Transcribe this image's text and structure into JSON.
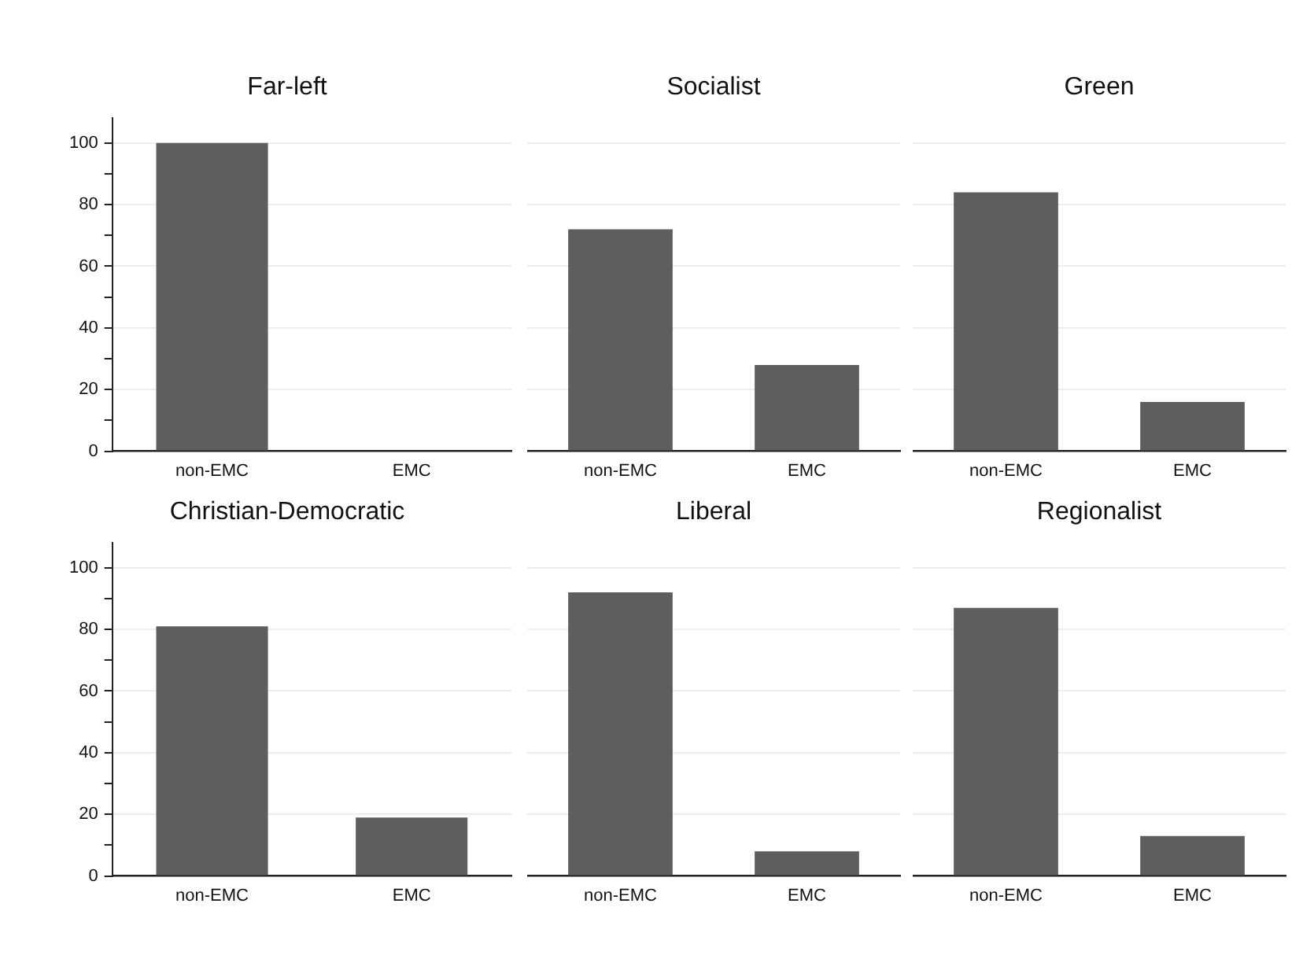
{
  "chart_data": [
    {
      "type": "bar",
      "title": "Far-left",
      "categories": [
        "non-EMC",
        "EMC"
      ],
      "values": [
        100,
        0
      ],
      "color": "#5e5e5e",
      "ylim": [
        0,
        108
      ],
      "yticks": [
        0,
        {
          "value": 10,
          "label": null
        },
        20,
        {
          "value": 30,
          "label": null
        },
        40,
        {
          "value": 50,
          "label": null
        },
        60,
        {
          "value": 70,
          "label": null
        },
        80,
        {
          "value": 90,
          "label": null
        },
        100
      ],
      "grid": "y"
    },
    {
      "type": "bar",
      "title": "Socialist",
      "categories": [
        "non-EMC",
        "EMC"
      ],
      "values": [
        72,
        28
      ],
      "color": "#5e5e5e",
      "yticks": [
        0,
        20,
        40,
        60,
        80,
        100
      ],
      "grid": "y",
      "tick_labels": "x"
    },
    {
      "type": "bar",
      "title": "Green",
      "categories": [
        "non-EMC",
        "EMC"
      ],
      "values": [
        84,
        16
      ],
      "color": "#5e5e5e",
      "yticks": [
        0,
        20,
        40,
        60,
        80,
        100
      ],
      "grid": "y",
      "tick_labels": "x"
    },
    {
      "type": "bar",
      "title": "Christian-Democratic",
      "categories": [
        "non-EMC",
        "EMC"
      ],
      "values": [
        81,
        19
      ],
      "color": "#5e5e5e",
      "ylim": [
        0,
        108
      ],
      "yticks": [
        0,
        {
          "value": 10,
          "label": null
        },
        20,
        {
          "value": 30,
          "label": null
        },
        40,
        {
          "value": 50,
          "label": null
        },
        60,
        {
          "value": 70,
          "label": null
        },
        80,
        {
          "value": 90,
          "label": null
        },
        100
      ],
      "grid": "y"
    },
    {
      "type": "bar",
      "title": "Liberal",
      "categories": [
        "non-EMC",
        "EMC"
      ],
      "values": [
        92,
        8
      ],
      "color": "#5e5e5e",
      "yticks": [
        0,
        20,
        40,
        60,
        80,
        100
      ],
      "grid": "y",
      "tick_labels": "x"
    },
    {
      "type": "bar",
      "title": "Regionalist",
      "categories": [
        "non-EMC",
        "EMC"
      ],
      "values": [
        87,
        13
      ],
      "color": "#5e5e5e",
      "yticks": [
        0,
        20,
        40,
        60,
        80,
        100
      ],
      "grid": "y",
      "tick_labels": "x"
    }
  ]
}
